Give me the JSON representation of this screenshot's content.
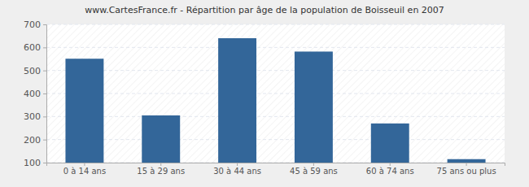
{
  "chart_data": {
    "type": "bar",
    "title": "www.CartesFrance.fr - Répartition par âge de la population de Boisseuil en 2007",
    "categories": [
      "0 à 14 ans",
      "15 à 29 ans",
      "30 à 44 ans",
      "45 à 59 ans",
      "60 à 74 ans",
      "75 ans ou plus"
    ],
    "values": [
      551,
      305,
      640,
      582,
      270,
      115
    ],
    "color": "#336699",
    "ylim": [
      100,
      700
    ],
    "yticks": [
      100,
      200,
      300,
      400,
      500,
      600,
      700
    ],
    "grid": true
  }
}
